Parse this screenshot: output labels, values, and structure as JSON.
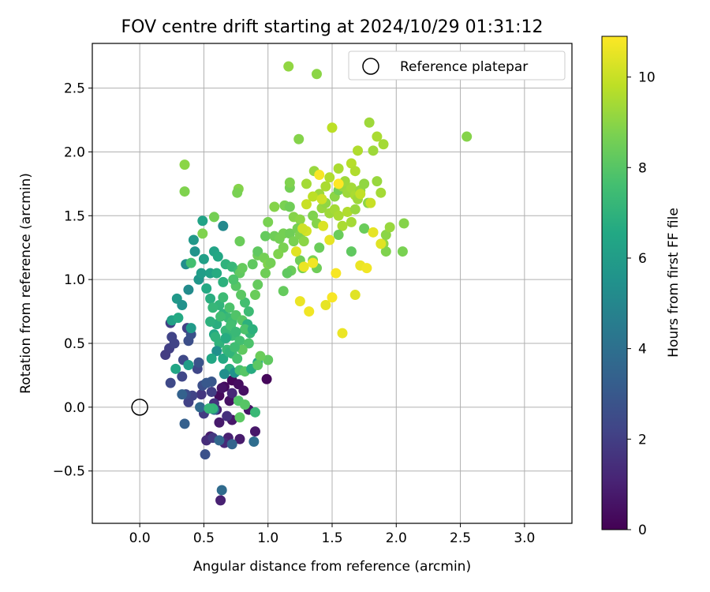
{
  "chart_data": {
    "type": "scatter",
    "title": "FOV centre drift starting at 2024/10/29 01:31:12",
    "xlabel": "Angular distance from reference (arcmin)",
    "ylabel": "Rotation from reference (arcmin)",
    "xlim": [
      -0.37,
      3.37
    ],
    "ylim": [
      -0.91,
      2.85
    ],
    "xticks": [
      0.0,
      0.5,
      1.0,
      1.5,
      2.0,
      2.5,
      3.0
    ],
    "yticks": [
      -0.5,
      0.0,
      0.5,
      1.0,
      1.5,
      2.0,
      2.5
    ],
    "grid": true,
    "legend": {
      "position": "top-right",
      "label": "Reference platepar"
    },
    "reference_point": {
      "x": 0.0,
      "y": 0.0
    },
    "colorbar": {
      "label": "Hours from first FF file",
      "min": 0,
      "max": 10.9,
      "ticks": [
        0,
        2,
        4,
        6,
        8,
        10
      ],
      "colormap": "viridis",
      "stops": [
        "#440154",
        "#482475",
        "#414487",
        "#355f8d",
        "#2a788e",
        "#21918c",
        "#22a884",
        "#44bf70",
        "#7ad151",
        "#bddf26",
        "#fde725"
      ]
    },
    "points": [
      {
        "x": 0.72,
        "y": 0.21,
        "h": 0.2
      },
      {
        "x": 0.66,
        "y": 0.16,
        "h": 0.3
      },
      {
        "x": 0.77,
        "y": 0.18,
        "h": 0.4
      },
      {
        "x": 0.81,
        "y": 0.13,
        "h": 0.5
      },
      {
        "x": 0.62,
        "y": 0.09,
        "h": 0.3
      },
      {
        "x": 0.7,
        "y": 0.05,
        "h": 0.5
      },
      {
        "x": 0.85,
        "y": -0.02,
        "h": 0.6
      },
      {
        "x": 0.99,
        "y": 0.22,
        "h": 0.2
      },
      {
        "x": 0.72,
        "y": -0.1,
        "h": 0.7
      },
      {
        "x": 0.62,
        "y": -0.12,
        "h": 0.8
      },
      {
        "x": 0.55,
        "y": -0.23,
        "h": 0.9
      },
      {
        "x": 0.69,
        "y": -0.24,
        "h": 1.0
      },
      {
        "x": 0.78,
        "y": -0.25,
        "h": 0.8
      },
      {
        "x": 0.9,
        "y": -0.19,
        "h": 0.7
      },
      {
        "x": 0.6,
        "y": -0.02,
        "h": 1.1
      },
      {
        "x": 0.72,
        "y": 0.11,
        "h": 1.2
      },
      {
        "x": 0.66,
        "y": -0.28,
        "h": 1.3
      },
      {
        "x": 0.52,
        "y": -0.26,
        "h": 1.4
      },
      {
        "x": 0.68,
        "y": -0.07,
        "h": 1.5
      },
      {
        "x": 0.58,
        "y": 0.03,
        "h": 1.6
      },
      {
        "x": 0.48,
        "y": 0.1,
        "h": 1.7
      },
      {
        "x": 0.64,
        "y": 0.15,
        "h": 0.6
      },
      {
        "x": 0.5,
        "y": -0.05,
        "h": 1.9
      },
      {
        "x": 0.56,
        "y": 0.12,
        "h": 2.0
      },
      {
        "x": 0.38,
        "y": 0.04,
        "h": 2.1
      },
      {
        "x": 0.41,
        "y": 0.09,
        "h": 2.2
      },
      {
        "x": 0.33,
        "y": 0.24,
        "h": 2.3
      },
      {
        "x": 0.24,
        "y": 0.19,
        "h": 2.4
      },
      {
        "x": 0.36,
        "y": 0.1,
        "h": 2.5
      },
      {
        "x": 0.49,
        "y": 0.17,
        "h": 2.6
      },
      {
        "x": 0.57,
        "y": -0.24,
        "h": 1.8
      },
      {
        "x": 0.51,
        "y": -0.37,
        "h": 2.7
      },
      {
        "x": 0.45,
        "y": 0.3,
        "h": 2.3
      },
      {
        "x": 0.37,
        "y": 0.62,
        "h": 2.1
      },
      {
        "x": 0.24,
        "y": 0.66,
        "h": 2.0
      },
      {
        "x": 0.25,
        "y": 0.55,
        "h": 2.2
      },
      {
        "x": 0.23,
        "y": 0.46,
        "h": 2.0
      },
      {
        "x": 0.2,
        "y": 0.41,
        "h": 1.9
      },
      {
        "x": 0.27,
        "y": 0.5,
        "h": 2.2
      },
      {
        "x": 0.34,
        "y": 0.37,
        "h": 2.4
      },
      {
        "x": 0.46,
        "y": 0.35,
        "h": 2.8
      },
      {
        "x": 0.56,
        "y": 0.2,
        "h": 2.9
      },
      {
        "x": 0.52,
        "y": 0.19,
        "h": 3.0
      },
      {
        "x": 0.38,
        "y": 0.52,
        "h": 2.6
      },
      {
        "x": 0.4,
        "y": 0.57,
        "h": 2.7
      },
      {
        "x": 0.35,
        "y": -0.13,
        "h": 3.3
      },
      {
        "x": 0.64,
        "y": -0.65,
        "h": 3.8
      },
      {
        "x": 0.63,
        "y": -0.73,
        "h": 1.0
      },
      {
        "x": 0.72,
        "y": -0.29,
        "h": 3.5
      },
      {
        "x": 0.89,
        "y": -0.27,
        "h": 3.9
      },
      {
        "x": 0.62,
        "y": -0.26,
        "h": 3.6
      },
      {
        "x": 0.58,
        "y": -0.02,
        "h": 4.0
      },
      {
        "x": 0.47,
        "y": 0.0,
        "h": 3.7
      },
      {
        "x": 0.33,
        "y": 0.1,
        "h": 3.4
      },
      {
        "x": 0.38,
        "y": 0.33,
        "h": 6.0
      },
      {
        "x": 0.28,
        "y": 0.3,
        "h": 6.4
      },
      {
        "x": 0.25,
        "y": 0.68,
        "h": 6.2
      },
      {
        "x": 0.3,
        "y": 0.7,
        "h": 6.6
      },
      {
        "x": 0.29,
        "y": 0.85,
        "h": 5.8
      },
      {
        "x": 0.33,
        "y": 0.8,
        "h": 5.5
      },
      {
        "x": 0.4,
        "y": 0.62,
        "h": 5.9
      },
      {
        "x": 0.38,
        "y": 0.92,
        "h": 5.2
      },
      {
        "x": 0.46,
        "y": 1.0,
        "h": 5.7
      },
      {
        "x": 0.48,
        "y": 1.05,
        "h": 6.0
      },
      {
        "x": 0.36,
        "y": 1.12,
        "h": 5.3
      },
      {
        "x": 0.43,
        "y": 1.22,
        "h": 5.6
      },
      {
        "x": 0.42,
        "y": 1.31,
        "h": 5.8
      },
      {
        "x": 0.5,
        "y": 1.16,
        "h": 6.1
      },
      {
        "x": 0.49,
        "y": 1.46,
        "h": 6.3
      },
      {
        "x": 0.65,
        "y": 1.42,
        "h": 5.1
      },
      {
        "x": 0.55,
        "y": 1.05,
        "h": 6.2
      },
      {
        "x": 0.58,
        "y": 1.22,
        "h": 6.3
      },
      {
        "x": 0.61,
        "y": 1.18,
        "h": 6.5
      },
      {
        "x": 0.52,
        "y": 0.93,
        "h": 6.6
      },
      {
        "x": 0.55,
        "y": 0.85,
        "h": 6.8
      },
      {
        "x": 0.6,
        "y": 1.05,
        "h": 6.7
      },
      {
        "x": 0.65,
        "y": 0.98,
        "h": 6.9
      },
      {
        "x": 0.67,
        "y": 1.12,
        "h": 7.0
      },
      {
        "x": 0.72,
        "y": 1.1,
        "h": 7.2
      },
      {
        "x": 0.77,
        "y": 1.07,
        "h": 7.4
      },
      {
        "x": 0.62,
        "y": 0.8,
        "h": 7.1
      },
      {
        "x": 0.65,
        "y": 0.73,
        "h": 7.0
      },
      {
        "x": 0.69,
        "y": 0.7,
        "h": 7.3
      },
      {
        "x": 0.72,
        "y": 0.67,
        "h": 7.5
      },
      {
        "x": 0.6,
        "y": 0.65,
        "h": 6.8
      },
      {
        "x": 0.67,
        "y": 0.6,
        "h": 7.2
      },
      {
        "x": 0.72,
        "y": 0.56,
        "h": 7.4
      },
      {
        "x": 0.78,
        "y": 0.52,
        "h": 7.6
      },
      {
        "x": 0.62,
        "y": 0.5,
        "h": 7.0
      },
      {
        "x": 0.68,
        "y": 0.45,
        "h": 7.3
      },
      {
        "x": 0.72,
        "y": 0.42,
        "h": 7.5
      },
      {
        "x": 0.76,
        "y": 0.38,
        "h": 7.7
      },
      {
        "x": 0.6,
        "y": 0.44,
        "h": 5.4
      },
      {
        "x": 0.58,
        "y": 0.57,
        "h": 6.5
      },
      {
        "x": 0.55,
        "y": 0.67,
        "h": 6.9
      },
      {
        "x": 0.7,
        "y": 0.78,
        "h": 7.8
      },
      {
        "x": 0.75,
        "y": 0.72,
        "h": 7.9
      },
      {
        "x": 0.8,
        "y": 0.68,
        "h": 8.0
      },
      {
        "x": 0.82,
        "y": 0.82,
        "h": 7.6
      },
      {
        "x": 0.85,
        "y": 0.75,
        "h": 7.4
      },
      {
        "x": 0.84,
        "y": 0.65,
        "h": 6.9
      },
      {
        "x": 0.86,
        "y": 0.58,
        "h": 7.2
      },
      {
        "x": 0.79,
        "y": 0.88,
        "h": 8.1
      },
      {
        "x": 0.75,
        "y": 0.95,
        "h": 8.0
      },
      {
        "x": 0.78,
        "y": 1.05,
        "h": 8.2
      },
      {
        "x": 0.8,
        "y": 1.09,
        "h": 8.3
      },
      {
        "x": 0.73,
        "y": 1.0,
        "h": 7.8
      },
      {
        "x": 0.68,
        "y": 0.55,
        "h": 7.1
      },
      {
        "x": 0.65,
        "y": 0.38,
        "h": 6.6
      },
      {
        "x": 0.7,
        "y": 0.3,
        "h": 6.8
      },
      {
        "x": 0.74,
        "y": 0.27,
        "h": 5.5
      },
      {
        "x": 0.66,
        "y": 0.26,
        "h": 5.3
      },
      {
        "x": 0.78,
        "y": 0.29,
        "h": 7.7
      },
      {
        "x": 0.82,
        "y": 0.28,
        "h": 8.0
      },
      {
        "x": 0.87,
        "y": 0.3,
        "h": 6.7
      },
      {
        "x": 0.92,
        "y": 0.35,
        "h": 6.4
      },
      {
        "x": 0.85,
        "y": 0.5,
        "h": 7.8
      },
      {
        "x": 0.8,
        "y": 0.45,
        "h": 8.2
      },
      {
        "x": 0.77,
        "y": 0.05,
        "h": 7.9
      },
      {
        "x": 0.82,
        "y": 0.02,
        "h": 8.0
      },
      {
        "x": 0.78,
        "y": -0.08,
        "h": 8.1
      },
      {
        "x": 0.9,
        "y": -0.04,
        "h": 7.3
      },
      {
        "x": 0.57,
        "y": -0.01,
        "h": 7.1
      },
      {
        "x": 0.92,
        "y": 0.96,
        "h": 8.3
      },
      {
        "x": 0.9,
        "y": 0.88,
        "h": 8.4
      },
      {
        "x": 0.88,
        "y": 1.12,
        "h": 8.2
      },
      {
        "x": 0.92,
        "y": 1.19,
        "h": 8.5
      },
      {
        "x": 0.92,
        "y": 1.22,
        "h": 8.2
      },
      {
        "x": 0.97,
        "y": 1.17,
        "h": 8.6
      },
      {
        "x": 1.0,
        "y": 1.12,
        "h": 8.8
      },
      {
        "x": 0.98,
        "y": 1.05,
        "h": 8.5
      },
      {
        "x": 1.02,
        "y": 1.13,
        "h": 8.6
      },
      {
        "x": 1.0,
        "y": 0.37,
        "h": 8.2
      },
      {
        "x": 0.94,
        "y": 0.4,
        "h": 8.4
      },
      {
        "x": 0.92,
        "y": 0.33,
        "h": 8.1
      },
      {
        "x": 0.98,
        "y": 1.34,
        "h": 8.3
      },
      {
        "x": 1.0,
        "y": 1.45,
        "h": 8.7
      },
      {
        "x": 1.05,
        "y": 1.34,
        "h": 8.5
      },
      {
        "x": 1.09,
        "y": 1.32,
        "h": 8.6
      },
      {
        "x": 1.12,
        "y": 1.25,
        "h": 8.7
      },
      {
        "x": 1.08,
        "y": 1.2,
        "h": 8.8
      },
      {
        "x": 1.12,
        "y": 1.36,
        "h": 8.6
      },
      {
        "x": 1.17,
        "y": 1.36,
        "h": 8.5
      },
      {
        "x": 1.2,
        "y": 1.3,
        "h": 8.7
      },
      {
        "x": 1.05,
        "y": 1.57,
        "h": 8.9
      },
      {
        "x": 1.13,
        "y": 1.58,
        "h": 8.7
      },
      {
        "x": 1.17,
        "y": 1.57,
        "h": 8.5
      },
      {
        "x": 1.17,
        "y": 1.72,
        "h": 8.6
      },
      {
        "x": 1.17,
        "y": 1.76,
        "h": 8.8
      },
      {
        "x": 1.2,
        "y": 1.49,
        "h": 8.9
      },
      {
        "x": 1.25,
        "y": 1.47,
        "h": 9.0
      },
      {
        "x": 1.23,
        "y": 1.4,
        "h": 8.6
      },
      {
        "x": 1.25,
        "y": 1.35,
        "h": 8.8
      },
      {
        "x": 1.28,
        "y": 1.3,
        "h": 9.0
      },
      {
        "x": 1.25,
        "y": 1.15,
        "h": 8.5
      },
      {
        "x": 1.18,
        "y": 1.07,
        "h": 8.4
      },
      {
        "x": 1.15,
        "y": 1.05,
        "h": 8.2
      },
      {
        "x": 1.12,
        "y": 0.91,
        "h": 8.3
      },
      {
        "x": 1.27,
        "y": 1.09,
        "h": 8.6
      },
      {
        "x": 1.35,
        "y": 1.15,
        "h": 8.7
      },
      {
        "x": 1.38,
        "y": 1.09,
        "h": 8.5
      },
      {
        "x": 1.4,
        "y": 1.25,
        "h": 8.4
      },
      {
        "x": 1.35,
        "y": 1.5,
        "h": 8.8
      },
      {
        "x": 1.38,
        "y": 1.44,
        "h": 8.9
      },
      {
        "x": 1.42,
        "y": 1.56,
        "h": 9.2
      },
      {
        "x": 1.45,
        "y": 1.6,
        "h": 9.1
      },
      {
        "x": 1.48,
        "y": 1.52,
        "h": 9.3
      },
      {
        "x": 1.52,
        "y": 1.55,
        "h": 9.4
      },
      {
        "x": 1.55,
        "y": 1.5,
        "h": 9.5
      },
      {
        "x": 1.52,
        "y": 1.65,
        "h": 9.0
      },
      {
        "x": 1.55,
        "y": 1.7,
        "h": 8.6
      },
      {
        "x": 1.58,
        "y": 1.73,
        "h": 9.2
      },
      {
        "x": 1.62,
        "y": 1.68,
        "h": 9.3
      },
      {
        "x": 1.65,
        "y": 1.72,
        "h": 9.4
      },
      {
        "x": 1.68,
        "y": 1.66,
        "h": 9.5
      },
      {
        "x": 1.72,
        "y": 1.7,
        "h": 9.2
      },
      {
        "x": 1.75,
        "y": 1.75,
        "h": 9.1
      },
      {
        "x": 1.7,
        "y": 1.63,
        "h": 9.3
      },
      {
        "x": 1.62,
        "y": 1.53,
        "h": 9.6
      },
      {
        "x": 1.65,
        "y": 1.45,
        "h": 9.4
      },
      {
        "x": 1.68,
        "y": 1.55,
        "h": 9.2
      },
      {
        "x": 1.58,
        "y": 1.42,
        "h": 9.5
      },
      {
        "x": 1.55,
        "y": 1.35,
        "h": 8.4
      },
      {
        "x": 1.65,
        "y": 1.22,
        "h": 8.2
      },
      {
        "x": 1.75,
        "y": 1.4,
        "h": 8.4
      },
      {
        "x": 1.78,
        "y": 1.6,
        "h": 9.0
      },
      {
        "x": 1.85,
        "y": 1.77,
        "h": 9.2
      },
      {
        "x": 1.88,
        "y": 1.68,
        "h": 9.4
      },
      {
        "x": 1.92,
        "y": 1.35,
        "h": 9.0
      },
      {
        "x": 1.95,
        "y": 1.41,
        "h": 9.2
      },
      {
        "x": 1.9,
        "y": 1.28,
        "h": 9.1
      },
      {
        "x": 1.92,
        "y": 1.22,
        "h": 8.8
      },
      {
        "x": 2.05,
        "y": 1.22,
        "h": 8.7
      },
      {
        "x": 2.06,
        "y": 1.44,
        "h": 8.9
      },
      {
        "x": 1.82,
        "y": 2.01,
        "h": 9.3
      },
      {
        "x": 1.85,
        "y": 2.12,
        "h": 9.5
      },
      {
        "x": 1.9,
        "y": 2.06,
        "h": 9.4
      },
      {
        "x": 1.79,
        "y": 2.23,
        "h": 9.3
      },
      {
        "x": 1.7,
        "y": 2.01,
        "h": 9.6
      },
      {
        "x": 1.5,
        "y": 2.19,
        "h": 9.8
      },
      {
        "x": 1.24,
        "y": 2.1,
        "h": 8.9
      },
      {
        "x": 1.16,
        "y": 2.67,
        "h": 9.1
      },
      {
        "x": 1.38,
        "y": 2.61,
        "h": 9.0
      },
      {
        "x": 2.55,
        "y": 2.12,
        "h": 8.9
      },
      {
        "x": 1.3,
        "y": 1.75,
        "h": 9.4
      },
      {
        "x": 1.36,
        "y": 1.85,
        "h": 9.2
      },
      {
        "x": 1.4,
        "y": 1.67,
        "h": 9.3
      },
      {
        "x": 1.45,
        "y": 1.73,
        "h": 9.5
      },
      {
        "x": 1.48,
        "y": 1.8,
        "h": 9.6
      },
      {
        "x": 1.55,
        "y": 1.87,
        "h": 9.5
      },
      {
        "x": 1.6,
        "y": 1.77,
        "h": 9.3
      },
      {
        "x": 1.65,
        "y": 1.91,
        "h": 9.7
      },
      {
        "x": 1.68,
        "y": 1.85,
        "h": 9.6
      },
      {
        "x": 1.72,
        "y": 1.67,
        "h": 9.9
      },
      {
        "x": 1.8,
        "y": 1.6,
        "h": 10.0
      },
      {
        "x": 1.3,
        "y": 1.59,
        "h": 10.0
      },
      {
        "x": 1.35,
        "y": 1.65,
        "h": 9.8
      },
      {
        "x": 1.42,
        "y": 1.63,
        "h": 10.1
      },
      {
        "x": 1.43,
        "y": 1.42,
        "h": 10.3
      },
      {
        "x": 1.48,
        "y": 1.31,
        "h": 10.5
      },
      {
        "x": 1.3,
        "y": 1.38,
        "h": 10.2
      },
      {
        "x": 1.27,
        "y": 1.4,
        "h": 10.1
      },
      {
        "x": 1.22,
        "y": 1.22,
        "h": 10.4
      },
      {
        "x": 1.28,
        "y": 1.1,
        "h": 10.6
      },
      {
        "x": 1.35,
        "y": 1.13,
        "h": 10.7
      },
      {
        "x": 1.53,
        "y": 1.05,
        "h": 10.8
      },
      {
        "x": 1.72,
        "y": 1.11,
        "h": 10.6
      },
      {
        "x": 1.77,
        "y": 1.09,
        "h": 10.7
      },
      {
        "x": 1.82,
        "y": 1.37,
        "h": 10.5
      },
      {
        "x": 1.88,
        "y": 1.28,
        "h": 10.4
      },
      {
        "x": 1.4,
        "y": 1.82,
        "h": 10.8
      },
      {
        "x": 1.55,
        "y": 1.75,
        "h": 10.9
      },
      {
        "x": 1.25,
        "y": 0.83,
        "h": 10.6
      },
      {
        "x": 1.32,
        "y": 0.75,
        "h": 10.7
      },
      {
        "x": 1.45,
        "y": 0.8,
        "h": 10.5
      },
      {
        "x": 1.5,
        "y": 0.86,
        "h": 10.8
      },
      {
        "x": 1.58,
        "y": 0.58,
        "h": 10.6
      },
      {
        "x": 1.68,
        "y": 0.88,
        "h": 10.4
      },
      {
        "x": 0.35,
        "y": 1.9,
        "h": 9.0
      },
      {
        "x": 0.35,
        "y": 1.69,
        "h": 8.8
      },
      {
        "x": 0.77,
        "y": 1.71,
        "h": 8.9
      },
      {
        "x": 0.76,
        "y": 1.68,
        "h": 8.7
      },
      {
        "x": 0.58,
        "y": 1.49,
        "h": 8.6
      },
      {
        "x": 0.49,
        "y": 1.36,
        "h": 8.8
      },
      {
        "x": 0.78,
        "y": 1.3,
        "h": 8.4
      },
      {
        "x": 0.4,
        "y": 1.13,
        "h": 7.6
      },
      {
        "x": 0.57,
        "y": 0.78,
        "h": 7.2
      },
      {
        "x": 0.59,
        "y": 0.55,
        "h": 7.0
      },
      {
        "x": 0.65,
        "y": 0.86,
        "h": 7.4
      },
      {
        "x": 0.71,
        "y": 0.64,
        "h": 7.6
      },
      {
        "x": 0.82,
        "y": 0.61,
        "h": 7.8
      },
      {
        "x": 0.63,
        "y": 0.71,
        "h": 7.5
      },
      {
        "x": 0.75,
        "y": 0.59,
        "h": 7.3
      },
      {
        "x": 0.56,
        "y": 0.38,
        "h": 6.5
      },
      {
        "x": 0.7,
        "y": 0.43,
        "h": 7.1
      },
      {
        "x": 0.74,
        "y": 0.47,
        "h": 7.5
      },
      {
        "x": 0.54,
        "y": -0.01,
        "h": 7.2
      },
      {
        "x": 0.88,
        "y": 0.61,
        "h": 6.9
      },
      {
        "x": 0.67,
        "y": 0.54,
        "h": 6.7
      }
    ]
  }
}
